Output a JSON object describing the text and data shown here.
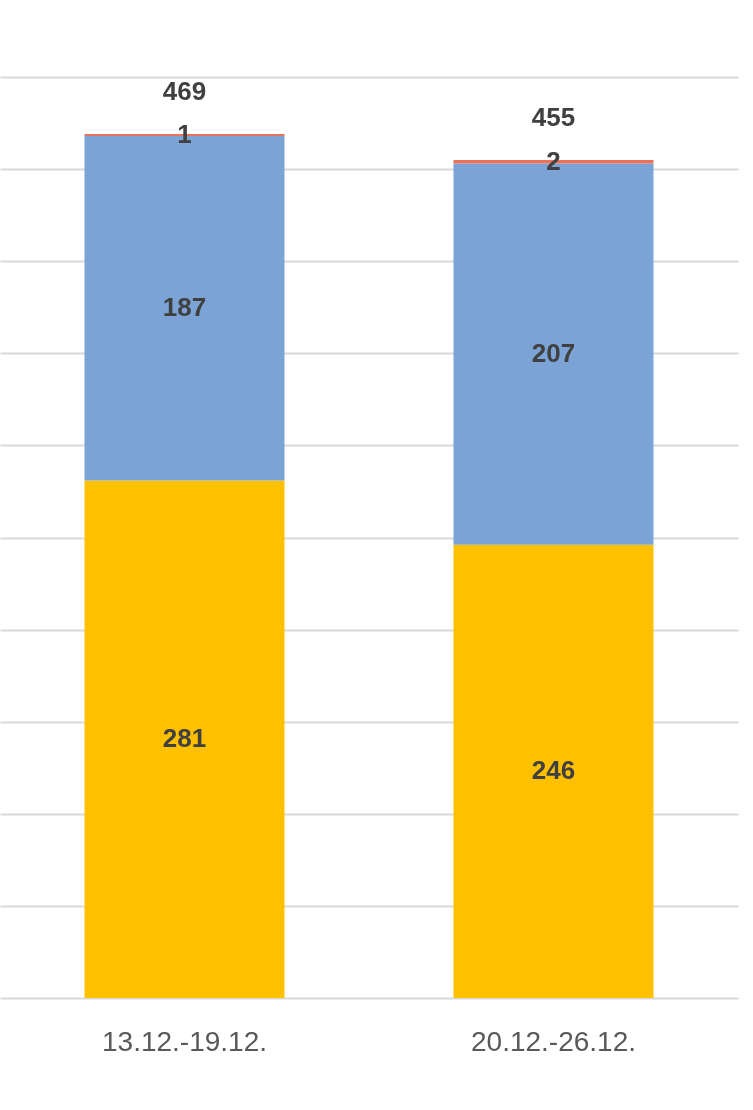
{
  "chart_data": {
    "type": "bar",
    "stacked": true,
    "categories": [
      "13.12.-19.12.",
      "20.12.-26.12."
    ],
    "series": [
      {
        "color": "#ffc000",
        "values": [
          281,
          246
        ]
      },
      {
        "color": "#7ba3d6",
        "values": [
          187,
          207
        ]
      },
      {
        "color": "#e8735a",
        "values": [
          1,
          2
        ]
      }
    ],
    "data_labels": true,
    "totals": [
      "469",
      "455"
    ],
    "ylim": [
      0,
      500
    ],
    "yticks": [
      {
        "value": 0,
        "label": null
      },
      {
        "value": 50,
        "label": null
      },
      {
        "value": 100,
        "label": null
      },
      {
        "value": 150,
        "label": null
      },
      {
        "value": 200,
        "label": null
      },
      {
        "value": 250,
        "label": null
      },
      {
        "value": 300,
        "label": null
      },
      {
        "value": 350,
        "label": null
      },
      {
        "value": 400,
        "label": null
      },
      {
        "value": 450,
        "label": null
      },
      {
        "value": 500,
        "label": null
      }
    ],
    "grid": "y",
    "tick_labels": "x",
    "legend": false
  }
}
